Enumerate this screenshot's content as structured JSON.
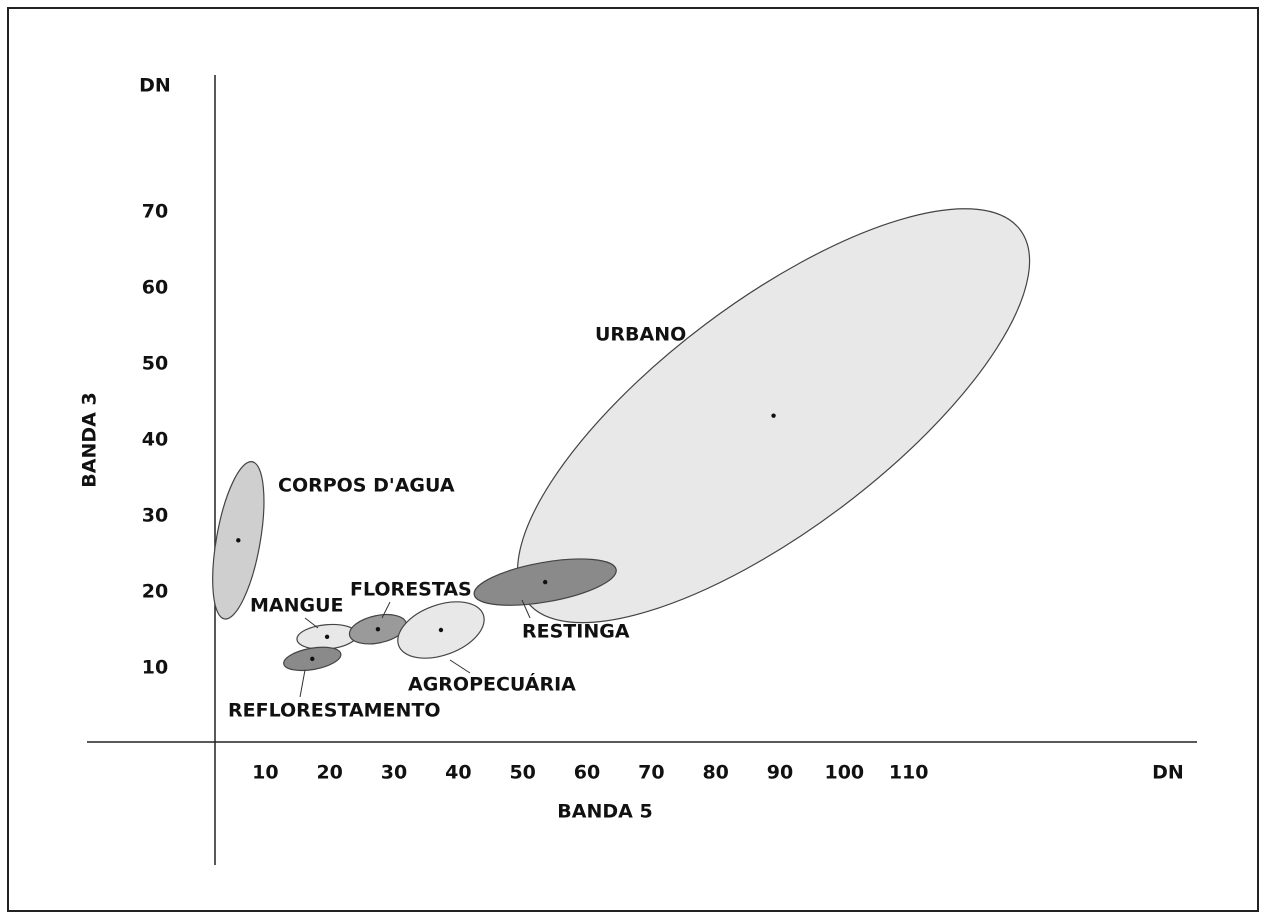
{
  "chart_data": {
    "type": "ellipse",
    "y_unit": "DN",
    "x_unit": "DN",
    "ylabel": "BANDA 3",
    "xlabel": "BANDA 5",
    "xlim": [
      0,
      120
    ],
    "ylim": [
      0,
      80
    ],
    "xticks": [
      10,
      20,
      30,
      40,
      50,
      60,
      70,
      80,
      90,
      100,
      110
    ],
    "yticks": [
      10,
      20,
      30,
      40,
      50,
      60,
      70
    ],
    "series": [
      {
        "name": "URBANO",
        "color": "#e8e8e8",
        "x": 89,
        "y": 43.2,
        "rx": 48,
        "ry": 15,
        "angle": -37
      },
      {
        "name": "CORPOS D'AGUA",
        "color": "#cfcfcf",
        "x": 5.8,
        "y": 26.8,
        "rx": 3.4,
        "ry": 10.5,
        "angle": 10
      },
      {
        "name": "MANGUE",
        "color": "#e8e8e8",
        "x": 19.6,
        "y": 14.1,
        "rx": 4.7,
        "ry": 1.6,
        "angle": -5
      },
      {
        "name": "FLORESTAS",
        "color": "#9a9a9a",
        "x": 27.5,
        "y": 15.1,
        "rx": 4.5,
        "ry": 1.8,
        "angle": -12
      },
      {
        "name": "AGROPECUÁRIA",
        "color": "#e8e8e8",
        "x": 37.3,
        "y": 15,
        "rx": 7,
        "ry": 3.3,
        "angle": -20
      },
      {
        "name": "REFLORESTAMENTO",
        "color": "#8a8a8a",
        "x": 17.3,
        "y": 11.2,
        "rx": 4.5,
        "ry": 1.4,
        "angle": -10
      },
      {
        "name": "RESTINGA",
        "color": "#8a8a8a",
        "x": 53.5,
        "y": 21.3,
        "rx": 11.2,
        "ry": 2.6,
        "angle": -10
      }
    ]
  }
}
